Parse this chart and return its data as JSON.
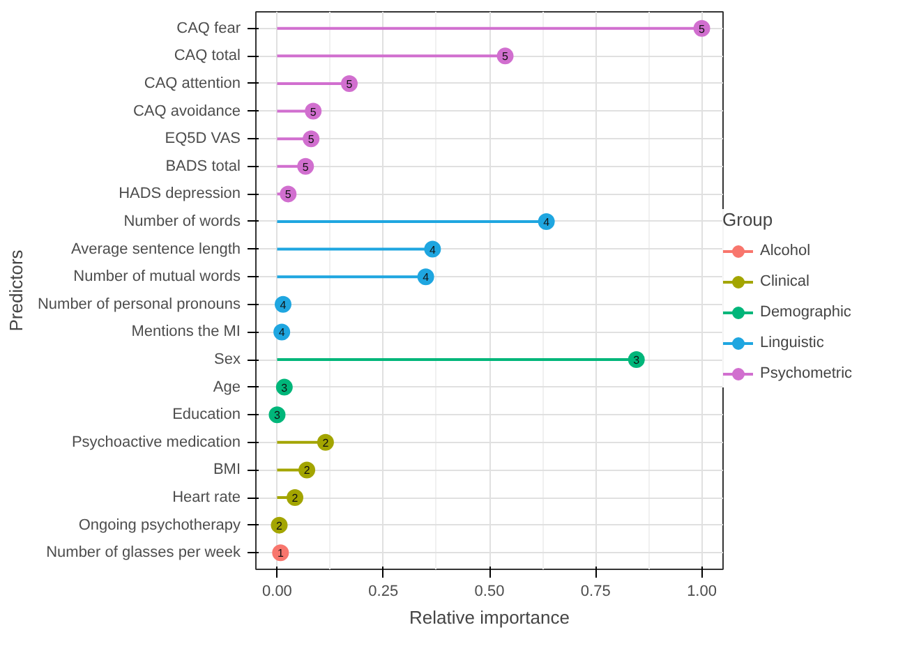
{
  "chart_data": {
    "type": "lollipop",
    "orientation": "horizontal",
    "xlabel": "Relative importance",
    "ylabel": "Predictors",
    "legend_title": "Group",
    "legend": "right",
    "grid": true,
    "marker": "circle",
    "categories": [
      "CAQ fear",
      "CAQ total",
      "CAQ attention",
      "CAQ avoidance",
      "EQ5D VAS",
      "BADS total",
      "HADS depression",
      "Number of words",
      "Average sentence length",
      "Number of mutual words",
      "Number of personal pronouns",
      "Mentions the MI",
      "Sex",
      "Age",
      "Education",
      "Psychoactive medication",
      "BMI",
      "Heart rate",
      "Ongoing psychotherapy",
      "Number of glasses per week"
    ],
    "xlim": [
      -0.05,
      1.05
    ],
    "xticks": [
      {
        "value": 0,
        "label": "0.00"
      },
      {
        "value": 0.25,
        "label": "0.25"
      },
      {
        "value": 0.5,
        "label": "0.50"
      },
      {
        "value": 0.75,
        "label": "0.75"
      },
      {
        "value": 1,
        "label": "1.00"
      }
    ],
    "series": [
      {
        "name": "Alcohol",
        "color": "#f8766d",
        "values": [
          null,
          null,
          null,
          null,
          null,
          null,
          null,
          null,
          null,
          null,
          null,
          null,
          null,
          null,
          null,
          null,
          null,
          null,
          null,
          0.008
        ]
      },
      {
        "name": "Clinical",
        "color": "#a3a500",
        "values": [
          null,
          null,
          null,
          null,
          null,
          null,
          null,
          null,
          null,
          null,
          null,
          null,
          null,
          null,
          null,
          0.114,
          0.07,
          0.042,
          0.005,
          null
        ]
      },
      {
        "name": "Demographic",
        "color": "#00b67a",
        "values": [
          null,
          null,
          null,
          null,
          null,
          null,
          null,
          null,
          null,
          null,
          null,
          null,
          0.846,
          0.017,
          0.0,
          null,
          null,
          null,
          null,
          null
        ]
      },
      {
        "name": "Linguistic",
        "color": "#1fa6e0",
        "values": [
          null,
          null,
          null,
          null,
          null,
          null,
          null,
          0.634,
          0.366,
          0.35,
          0.014,
          0.011,
          null,
          null,
          null,
          null,
          null,
          null,
          null,
          null
        ]
      },
      {
        "name": "Psychometric",
        "color": "#d16fcf",
        "values": [
          1.0,
          0.537,
          0.17,
          0.085,
          0.08,
          0.067,
          0.026,
          null,
          null,
          null,
          null,
          null,
          null,
          null,
          null,
          null,
          null,
          null,
          null,
          null
        ]
      }
    ],
    "annotations": [
      {
        "text": "5",
        "x": 1.0,
        "y": "CAQ fear"
      },
      {
        "text": "5",
        "x": 0.537,
        "y": "CAQ total"
      },
      {
        "text": "5",
        "x": 0.17,
        "y": "CAQ attention"
      },
      {
        "text": "5",
        "x": 0.085,
        "y": "CAQ avoidance"
      },
      {
        "text": "5",
        "x": 0.08,
        "y": "EQ5D VAS"
      },
      {
        "text": "5",
        "x": 0.067,
        "y": "BADS total"
      },
      {
        "text": "5",
        "x": 0.026,
        "y": "HADS depression"
      },
      {
        "text": "4",
        "x": 0.634,
        "y": "Number of words"
      },
      {
        "text": "4",
        "x": 0.366,
        "y": "Average sentence length"
      },
      {
        "text": "4",
        "x": 0.35,
        "y": "Number of mutual words"
      },
      {
        "text": "4",
        "x": 0.014,
        "y": "Number of personal pronouns"
      },
      {
        "text": "4",
        "x": 0.011,
        "y": "Mentions the MI"
      },
      {
        "text": "3",
        "x": 0.846,
        "y": "Sex"
      },
      {
        "text": "3",
        "x": 0.017,
        "y": "Age"
      },
      {
        "text": "3",
        "x": 0.0,
        "y": "Education"
      },
      {
        "text": "2",
        "x": 0.114,
        "y": "Psychoactive medication"
      },
      {
        "text": "2",
        "x": 0.07,
        "y": "BMI"
      },
      {
        "text": "2",
        "x": 0.042,
        "y": "Heart rate"
      },
      {
        "text": "2",
        "x": 0.005,
        "y": "Ongoing psychotherapy"
      },
      {
        "text": "1",
        "x": 0.008,
        "y": "Number of glasses per week"
      }
    ]
  }
}
